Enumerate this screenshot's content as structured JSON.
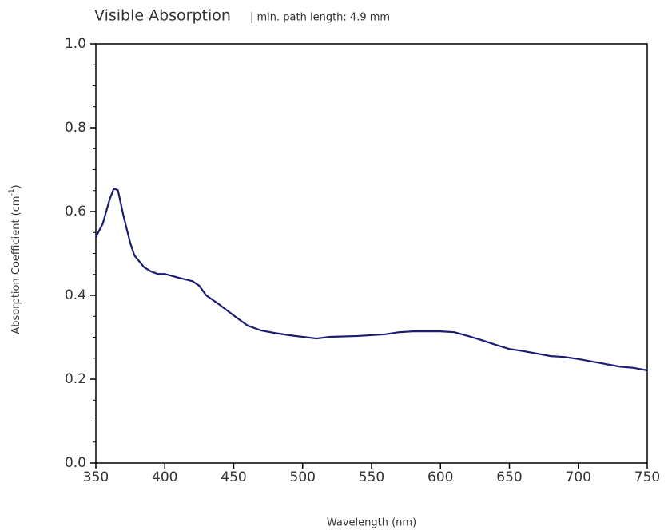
{
  "chart_data": {
    "type": "line",
    "title": "Visible Absorption",
    "subtitle": "| min. path length: 4.9 mm",
    "xlabel": "Wavelength (nm)",
    "ylabel": [
      "Absorption Coefficient (cm",
      "-1",
      ")"
    ],
    "x": [
      350,
      355,
      360,
      363,
      366,
      370,
      375,
      378,
      385,
      390,
      395,
      400,
      410,
      420,
      425,
      430,
      440,
      450,
      460,
      470,
      480,
      490,
      500,
      510,
      520,
      540,
      560,
      570,
      580,
      600,
      610,
      620,
      630,
      640,
      650,
      660,
      670,
      680,
      690,
      700,
      710,
      720,
      730,
      740,
      750
    ],
    "series": [
      {
        "name": "Absorption",
        "color": "#1c1c72",
        "values": [
          0.539,
          0.571,
          0.629,
          0.655,
          0.651,
          0.59,
          0.524,
          0.495,
          0.467,
          0.457,
          0.451,
          0.451,
          0.442,
          0.434,
          0.423,
          0.4,
          0.377,
          0.352,
          0.328,
          0.316,
          0.31,
          0.305,
          0.301,
          0.297,
          0.301,
          0.303,
          0.307,
          0.312,
          0.314,
          0.314,
          0.312,
          0.303,
          0.293,
          0.282,
          0.272,
          0.267,
          0.261,
          0.255,
          0.253,
          0.248,
          0.242,
          0.236,
          0.23,
          0.227,
          0.221
        ]
      }
    ],
    "xlim": [
      350,
      750
    ],
    "xticks": [
      350,
      400,
      450,
      500,
      550,
      600,
      650,
      700,
      750
    ],
    "ylim": [
      0,
      1
    ],
    "yticks": [
      {
        "value": 0,
        "label": "0.0"
      },
      0.2,
      0.4,
      0.6,
      0.8,
      {
        "value": 1,
        "label": "1.0"
      }
    ],
    "grid": false
  }
}
